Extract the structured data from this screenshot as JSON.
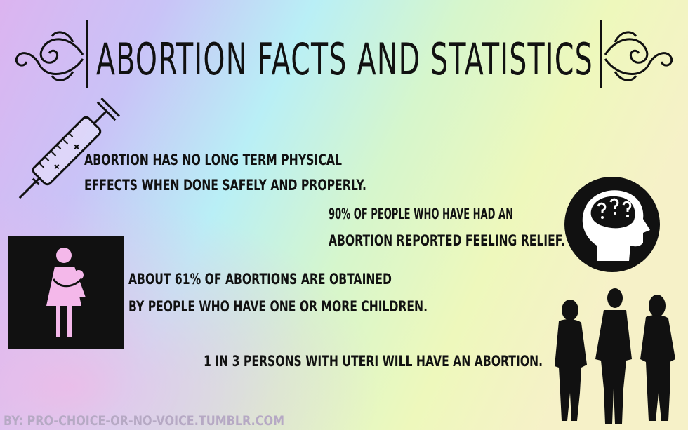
{
  "title": "ABORTION FACTS AND STATISTICS",
  "facts": [
    {
      "lines": [
        "ABORTION HAS NO LONG TERM PHYSICAL",
        "EFFECTS WHEN DONE SAFELY AND PROPERLY."
      ]
    },
    {
      "lines": [
        "90% OF PEOPLE WHO HAVE HAD AN",
        "ABORTION REPORTED FEELING RELIEF."
      ]
    },
    {
      "lines": [
        "ABOUT 61% OF ABORTIONS ARE OBTAINED",
        "BY PEOPLE WHO HAVE ONE OR MORE CHILDREN."
      ]
    },
    {
      "lines": [
        "1 IN 3 PERSONS WITH UTERI WILL HAVE AN ABORTION."
      ]
    }
  ],
  "credit": "BY: PRO-CHOICE-OR-NO-VOICE.TUMBLR.COM"
}
